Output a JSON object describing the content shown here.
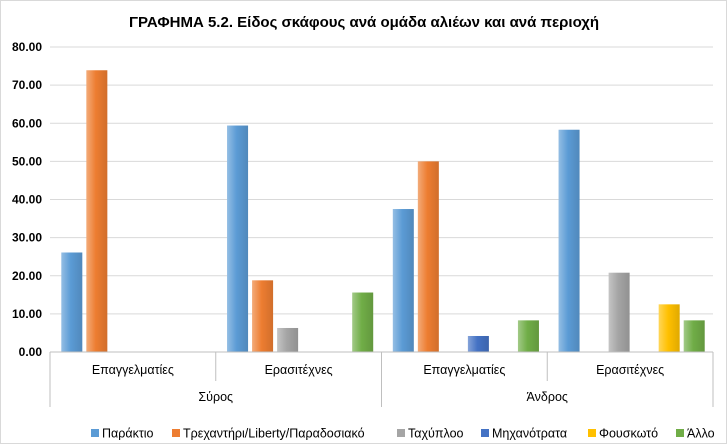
{
  "chart_data": {
    "type": "bar",
    "title": "ΓΡΑΦΗΜΑ 5.2. Είδος σκάφους ανά ομάδα αλιέων και ανά περιοχή",
    "categories": [
      "Επαγγελματίες",
      "Ερασιτέχνες",
      "Επαγγελματίες",
      "Ερασιτέχνες"
    ],
    "category_groups": [
      {
        "name": "Σύρος",
        "span": 2
      },
      {
        "name": "Άνδρος",
        "span": 2
      }
    ],
    "ylim": [
      0,
      80
    ],
    "yticks": [
      "0.00",
      "10.00",
      "20.00",
      "30.00",
      "40.00",
      "50.00",
      "60.00",
      "70.00",
      "80.00"
    ],
    "grid": true,
    "legend_position": "bottom",
    "series": [
      {
        "name": "Παράκτιο",
        "color": "#5B9BD5",
        "values": [
          26.1,
          59.4,
          37.5,
          58.3
        ]
      },
      {
        "name": "Τρεχαντήρι/Liberty/Παραδοσιακό",
        "color": "#ED7D31",
        "values": [
          73.9,
          18.8,
          50.0,
          0
        ]
      },
      {
        "name": "Ταχύπλοο",
        "color": "#A5A5A5",
        "values": [
          0,
          6.3,
          0,
          20.8
        ]
      },
      {
        "name": "Μηχανότρατα",
        "color": "#4472C4",
        "values": [
          0,
          0,
          4.2,
          0
        ]
      },
      {
        "name": "Φουσκωτό",
        "color": "#FFC000",
        "values": [
          0,
          0,
          0,
          12.5
        ]
      },
      {
        "name": "Άλλο",
        "color": "#70AD47",
        "values": [
          0,
          15.6,
          8.3,
          8.3
        ]
      }
    ]
  }
}
